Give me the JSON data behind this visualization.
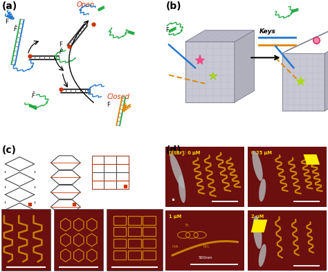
{
  "fig_width": 4.74,
  "fig_height": 3.93,
  "dpi": 100,
  "bg_color": "#ffffff",
  "panel_label_fontsize": 10,
  "panel_a": {
    "open_color": "#cc3300",
    "closed_color": "#cc3300"
  },
  "panel_d": {
    "labels": [
      "[EtBr]: 0 μM",
      "0.25 μM",
      "1 μM",
      "2 μM"
    ],
    "label_color": "#ffdd00",
    "scalebar_color": "#ffffff"
  },
  "colors": {
    "blue": "#2277cc",
    "green": "#22aa44",
    "red": "#cc3300",
    "orange": "#dd8800",
    "black": "#222222",
    "gray": "#888888",
    "dark_gray": "#444444",
    "afm_bg": "#6b0f0f",
    "afm_strand": "#cc8800",
    "afm_gray": "#b0b0b0"
  }
}
